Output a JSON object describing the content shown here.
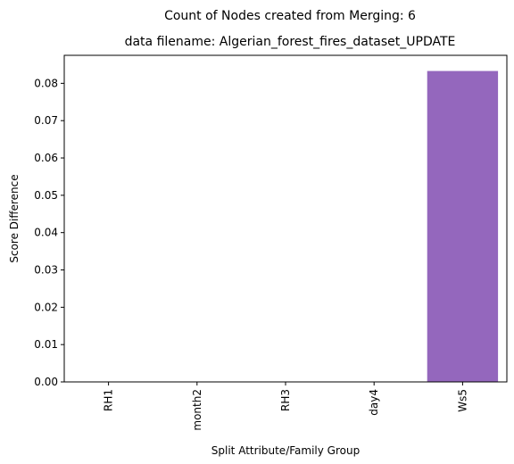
{
  "chart_data": {
    "type": "bar",
    "suptitle": "Count of Nodes created from Merging: 6",
    "title": "data filename: Algerian_forest_fires_dataset_UPDATE",
    "xlabel": "Split Attribute/Family Group",
    "ylabel": "Score Difference",
    "categories": [
      "RH1",
      "month2",
      "RH3",
      "day4",
      "Ws5"
    ],
    "values": [
      0,
      0,
      0,
      0,
      0.0833
    ],
    "ylim": [
      0,
      0.0875
    ],
    "yticks": [
      0.0,
      0.01,
      0.02,
      0.03,
      0.04,
      0.05,
      0.06,
      0.07,
      0.08
    ],
    "ytick_labels": [
      "0.00",
      "0.01",
      "0.02",
      "0.03",
      "0.04",
      "0.05",
      "0.06",
      "0.07",
      "0.08"
    ],
    "bar_colors": [
      "#1f77b4",
      "#ff7f0e",
      "#2ca02c",
      "#d62728",
      "#9467bd"
    ],
    "grid": false,
    "legend": "none"
  }
}
